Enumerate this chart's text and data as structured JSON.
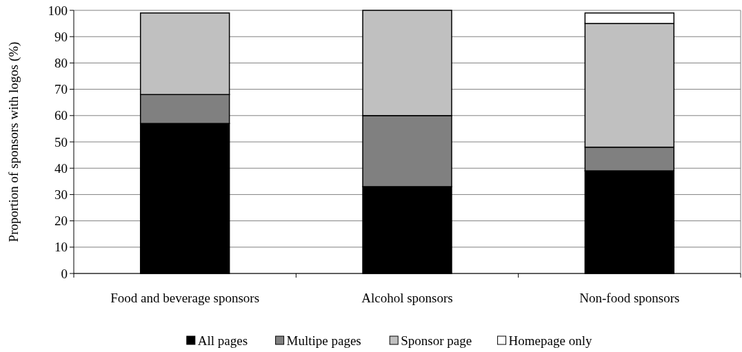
{
  "chart_data": {
    "type": "bar",
    "stacked": true,
    "ylabel": "Proportion of sponsors with logos (%)",
    "categories": [
      "Food and beverage sponsors",
      "Alcohol sponsors",
      "Non-food sponsors"
    ],
    "series": [
      {
        "name": "All pages",
        "color": "#000000",
        "values": [
          57,
          33,
          39
        ]
      },
      {
        "name": "Multipe pages",
        "color": "#808080",
        "values": [
          11,
          27,
          9
        ]
      },
      {
        "name": "Sponsor page",
        "color": "#c0c0c0",
        "values": [
          31,
          40,
          47
        ]
      },
      {
        "name": "Homepage only",
        "color": "#ffffff",
        "values": [
          0,
          0,
          4
        ]
      }
    ],
    "ylim": [
      0,
      100
    ],
    "yticks": [
      0,
      10,
      20,
      30,
      40,
      50,
      60,
      70,
      80,
      90,
      100
    ],
    "grid": "y",
    "legend": "bottom"
  }
}
